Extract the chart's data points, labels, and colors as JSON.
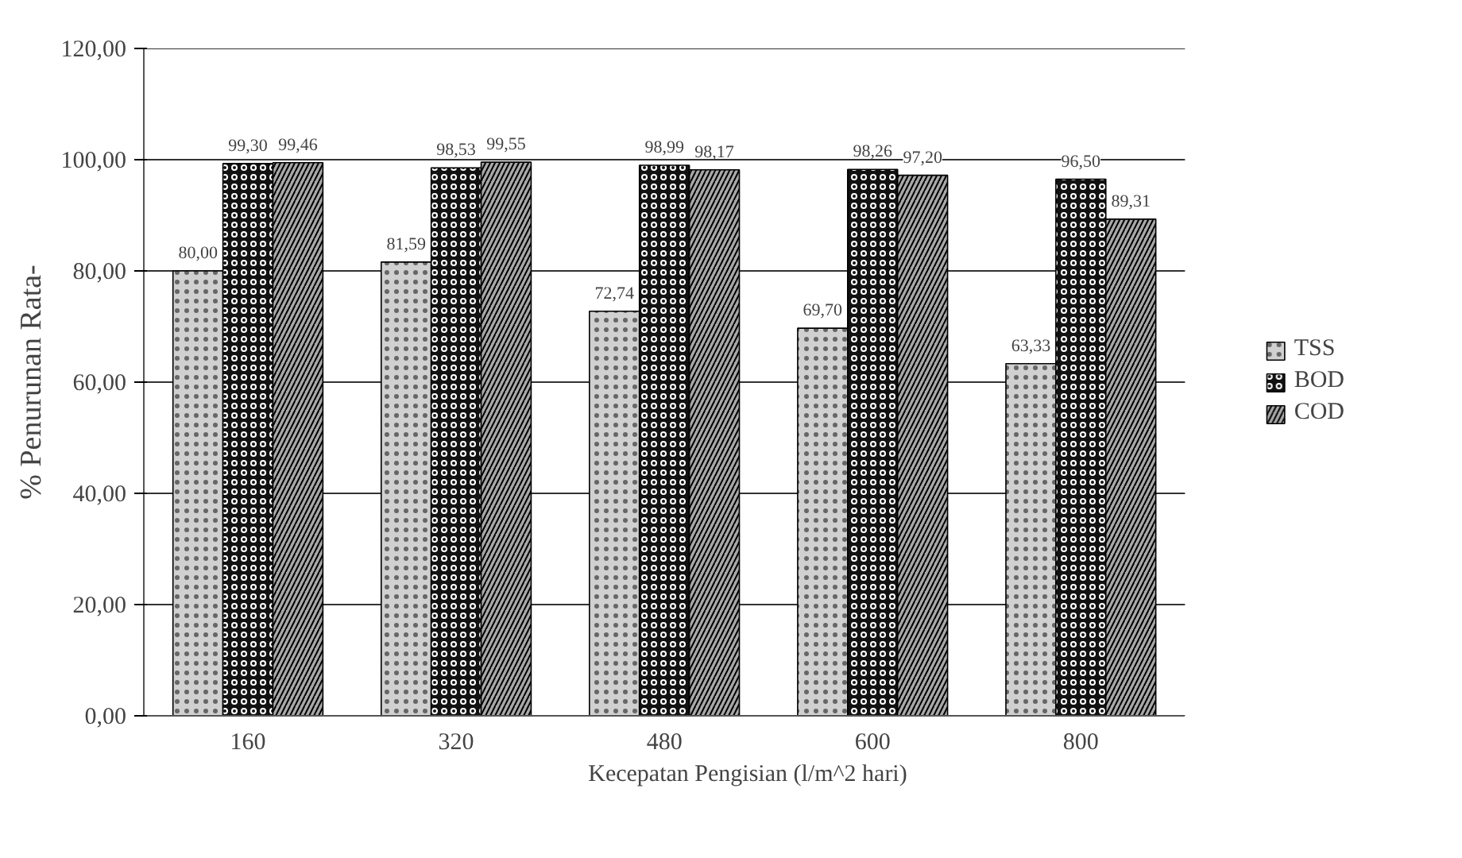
{
  "chart_data": {
    "type": "bar",
    "xlabel": "Kecepatan Pengisian (l/m^2 hari)",
    "ylabel": "% Penurunan Rata-",
    "categories": [
      "160",
      "320",
      "480",
      "600",
      "800"
    ],
    "series": [
      {
        "name": "TSS",
        "color": "#d0d0d0",
        "values": [
          80.0,
          81.59,
          72.74,
          69.7,
          63.33
        ],
        "value_labels": [
          "80,00",
          "81,59",
          "72,74",
          "69,70",
          "63,33"
        ]
      },
      {
        "name": "BOD",
        "color": "#111111",
        "values": [
          99.3,
          98.53,
          98.99,
          98.26,
          96.5
        ],
        "value_labels": [
          "99,30",
          "98,53",
          "98,99",
          "98,26",
          "96,50"
        ]
      },
      {
        "name": "COD",
        "color": "#a8a8a8",
        "values": [
          99.46,
          99.55,
          98.17,
          97.2,
          89.31
        ],
        "value_labels": [
          "99,46",
          "99,55",
          "98,17",
          "97,20",
          "89,31"
        ]
      }
    ],
    "ylim": [
      0,
      120
    ],
    "yticks": [
      {
        "value": 0,
        "label": "0,00"
      },
      {
        "value": 20,
        "label": "20,00"
      },
      {
        "value": 40,
        "label": "40,00"
      },
      {
        "value": 60,
        "label": "60,00"
      },
      {
        "value": 80,
        "label": "80,00"
      },
      {
        "value": 100,
        "label": "100,00"
      },
      {
        "value": 120,
        "label": "120,00"
      }
    ],
    "grid": "y",
    "legend": "right"
  }
}
